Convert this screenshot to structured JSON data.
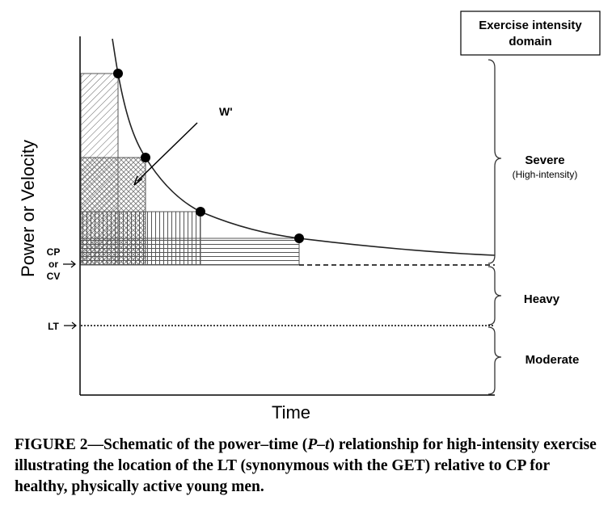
{
  "figure": {
    "y_axis_label": "Power or Velocity",
    "x_axis_label": "Time",
    "marker_cp": [
      "CP",
      "or",
      "CV"
    ],
    "marker_lt": "LT",
    "w_prime_label": "W'",
    "legend_title_line1": "Exercise intensity",
    "legend_title_line2": "domain",
    "domains": [
      {
        "name": "Severe",
        "note": "(High-intensity)"
      },
      {
        "name": "Heavy"
      },
      {
        "name": "Moderate"
      }
    ]
  },
  "caption": {
    "lines": [
      "FIGURE 2—Schematic of the power–time (",
      "P–t",
      ") relationship for high-intensity exercise illustrating the location of the LT (synonymous with the GET) relative to CP for healthy, physically active young men."
    ]
  }
}
